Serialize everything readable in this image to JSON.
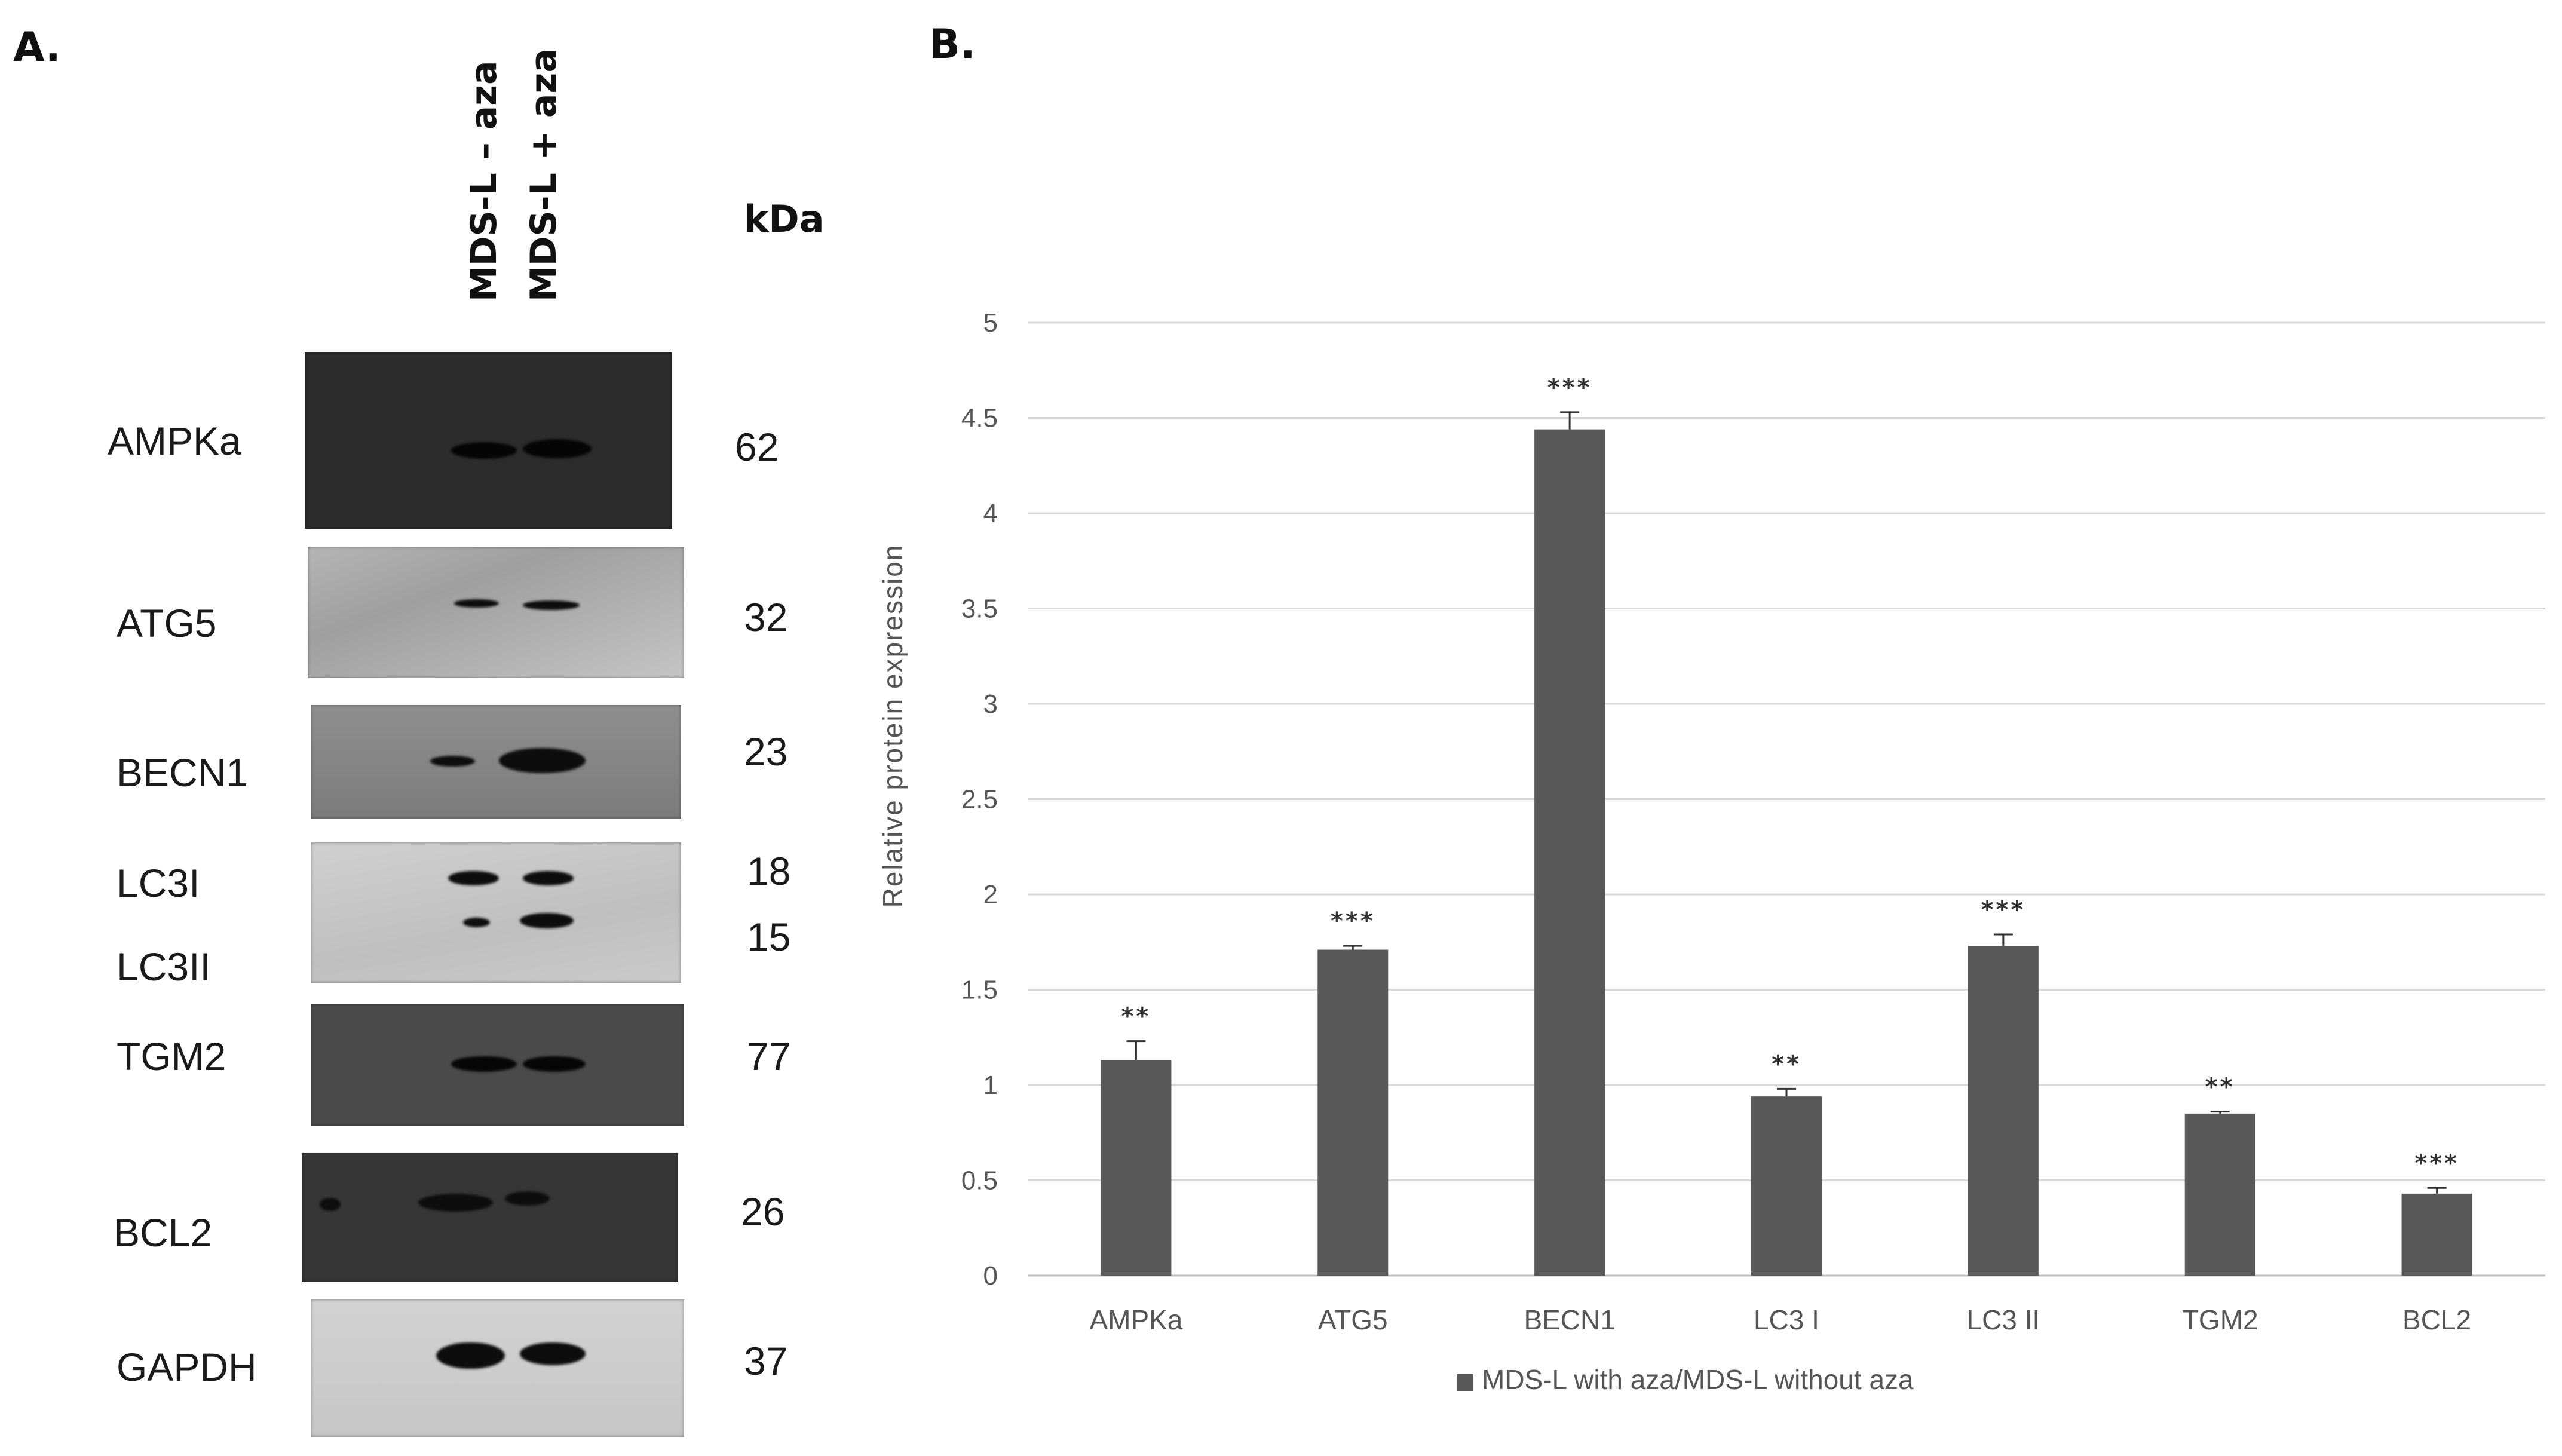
{
  "panel_a": {
    "letter": "A.",
    "lanes": [
      "MDS-L – aza",
      "MDS-L + aza"
    ],
    "kda_header": "kDa",
    "rows": [
      {
        "label": "AMPKa",
        "kda": "62"
      },
      {
        "label": "ATG5",
        "kda": "32"
      },
      {
        "label": "BECN1",
        "kda": "23"
      },
      {
        "label": "LC3I",
        "kda": "18"
      },
      {
        "label": "LC3II",
        "kda": "15"
      },
      {
        "label": "TGM2",
        "kda": "77"
      },
      {
        "label": "BCL2",
        "kda": "26"
      },
      {
        "label": "GAPDH",
        "kda": "37"
      }
    ],
    "band_color": "#0d0d0d"
  },
  "panel_b": {
    "letter": "B."
  },
  "chart_data": {
    "type": "bar",
    "title": "",
    "xlabel": "",
    "ylabel": "Relative protein expression",
    "ylim": [
      0,
      5
    ],
    "yticks": [
      "0",
      "0.5",
      "1",
      "1.5",
      "2",
      "2.5",
      "3",
      "3.5",
      "4",
      "4.5",
      "5"
    ],
    "grid": true,
    "categories": [
      "AMPKa",
      "ATG5",
      "BECN1",
      "LC3 I",
      "LC3 II",
      "TGM2",
      "BCL2"
    ],
    "series": [
      {
        "name": "MDS-L with aza/MDS-L without aza",
        "values": [
          1.13,
          1.71,
          4.44,
          0.94,
          1.73,
          0.85,
          0.43
        ],
        "errors": [
          0.1,
          0.02,
          0.09,
          0.04,
          0.06,
          0.01,
          0.03
        ],
        "color": "#595959"
      }
    ],
    "significance": [
      "**",
      "***",
      "***",
      "**",
      "***",
      "**",
      "***"
    ],
    "legend": "bottom-center"
  }
}
